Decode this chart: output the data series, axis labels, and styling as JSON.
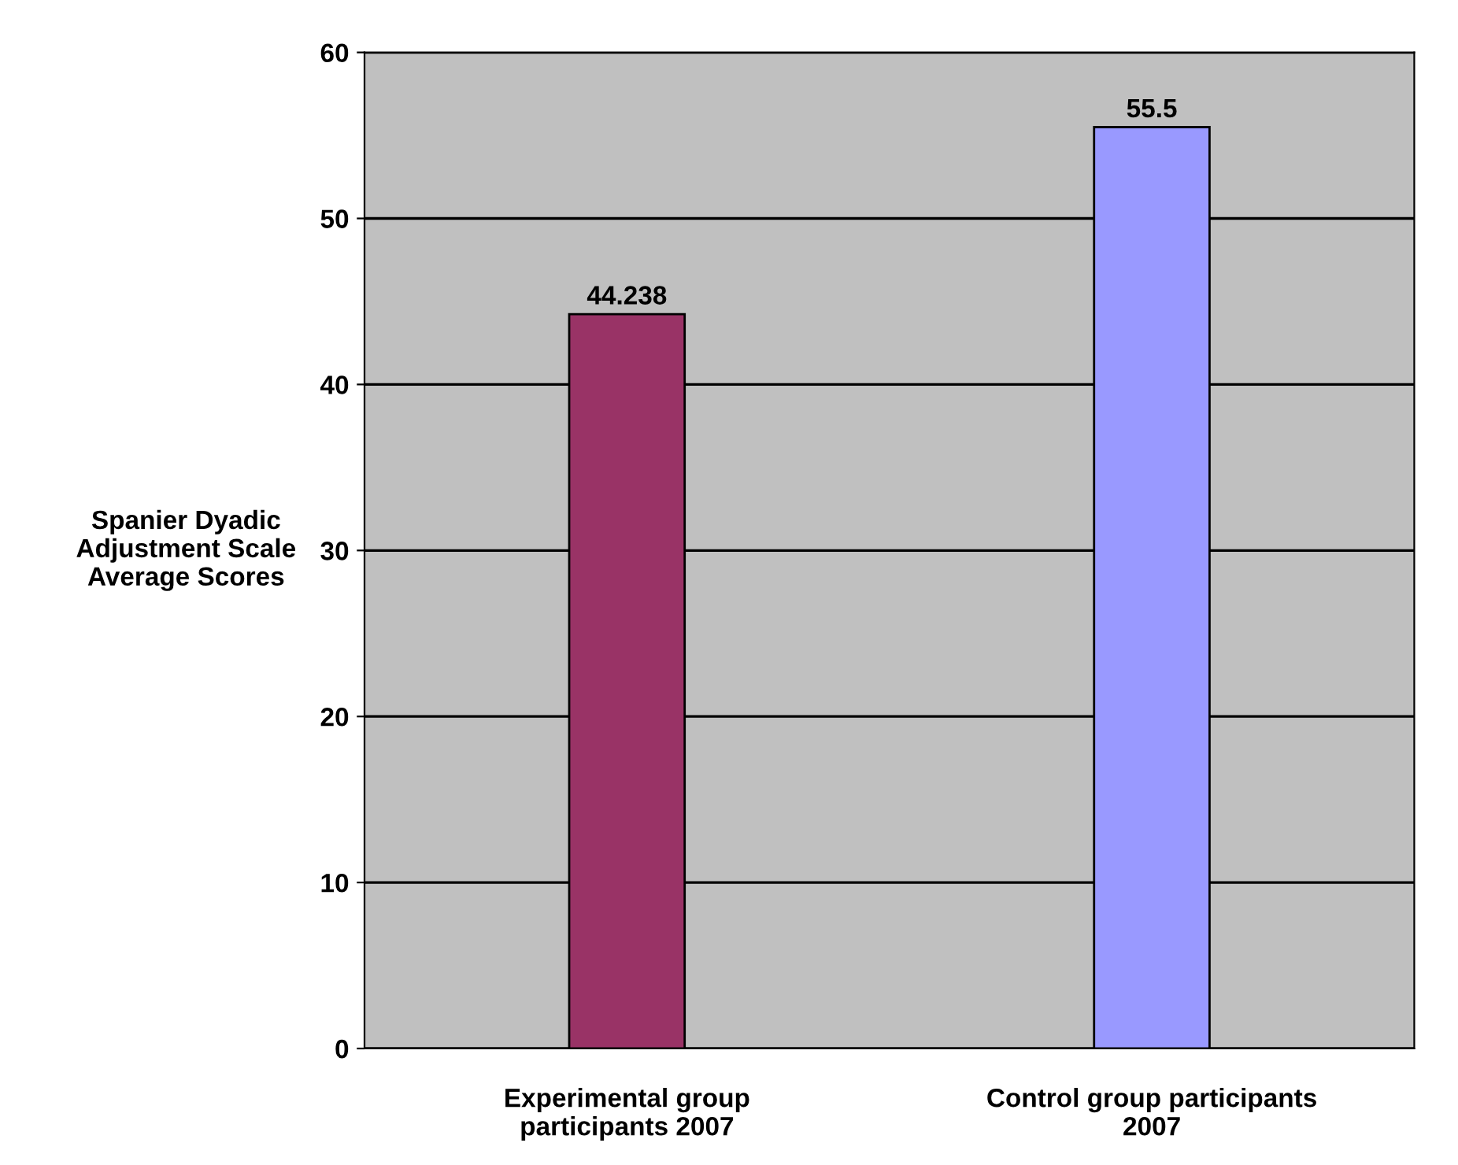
{
  "chart_data": {
    "type": "bar",
    "ylabel": "Spanier Dyadic\nAdjustment Scale\nAverage Scores",
    "categories": [
      "Experimental group\nparticipants 2007",
      "Control group participants\n2007"
    ],
    "values": [
      44.238,
      55.5
    ],
    "colors": [
      "#993366",
      "#9999ff"
    ],
    "ylim": [
      0,
      60
    ],
    "yticks": [
      0,
      10,
      20,
      30,
      40,
      50,
      60
    ],
    "grid": "y",
    "data_labels": true
  }
}
